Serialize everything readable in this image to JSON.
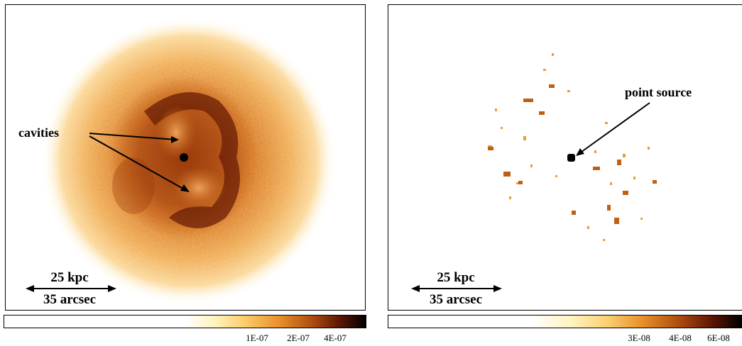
{
  "left_panel": {
    "annotation": "cavities",
    "scalebar_top": "25 kpc",
    "scalebar_bottom": "35 arcsec",
    "colorbar_ticks": [
      "1E-07",
      "2E-07",
      "4E-07"
    ]
  },
  "right_panel": {
    "annotation": "point source",
    "scalebar_top": "25 kpc",
    "scalebar_bottom": "35 arcsec",
    "colorbar_ticks": [
      "3E-08",
      "4E-08",
      "6E-08"
    ]
  },
  "colors": {
    "low": "#ffffff",
    "mid_low": "#fdeaa0",
    "mid": "#e8902a",
    "mid_high": "#8a2a08",
    "high": "#000000"
  }
}
